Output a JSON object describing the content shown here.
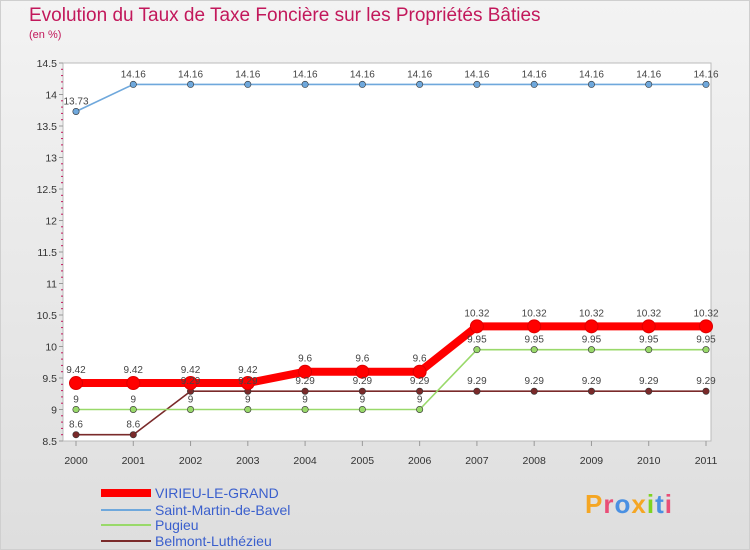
{
  "chart_data": {
    "type": "line",
    "title": "Evolution du Taux de Taxe Foncière sur les Propriétés Bâties",
    "ylabel": "(en %)",
    "xlabel": "",
    "categories": [
      "2000",
      "2001",
      "2002",
      "2003",
      "2004",
      "2005",
      "2006",
      "2007",
      "2008",
      "2009",
      "2010",
      "2011"
    ],
    "ylim": [
      8.5,
      14.5
    ],
    "yticks": [
      "8.5",
      "9",
      "9.5",
      "10",
      "10.5",
      "11",
      "11.5",
      "12",
      "12.5",
      "13",
      "13.5",
      "14",
      "14.5"
    ],
    "series": [
      {
        "name": "VIRIEU-LE-GRAND",
        "color": "#ff0000",
        "values": [
          9.42,
          9.42,
          9.42,
          9.42,
          9.6,
          9.6,
          9.6,
          10.32,
          10.32,
          10.32,
          10.32,
          10.32
        ],
        "labels": [
          "9.42",
          "9.42",
          "9.42",
          "9.42",
          "9.6",
          "9.6",
          "9.6",
          "10.32",
          "10.32",
          "10.32",
          "10.32",
          "10.32"
        ]
      },
      {
        "name": "Saint-Martin-de-Bavel",
        "color": "#6fa8dc",
        "values": [
          13.73,
          14.16,
          14.16,
          14.16,
          14.16,
          14.16,
          14.16,
          14.16,
          14.16,
          14.16,
          14.16,
          14.16
        ],
        "labels": [
          "13.73",
          "14.16",
          "14.16",
          "14.16",
          "14.16",
          "14.16",
          "14.16",
          "14.16",
          "14.16",
          "14.16",
          "14.16",
          "14.16"
        ]
      },
      {
        "name": "Pugieu",
        "color": "#99d96a",
        "values": [
          9,
          9,
          9,
          9,
          9,
          9,
          9,
          9.95,
          9.95,
          9.95,
          9.95,
          9.95
        ],
        "labels": [
          "9",
          "9",
          "9",
          "9",
          "9",
          "9",
          "9",
          "9.95",
          "9.95",
          "9.95",
          "9.95",
          "9.95"
        ]
      },
      {
        "name": "Belmont-Luthézieu",
        "color": "#7a2a2a",
        "values": [
          8.6,
          8.6,
          9.29,
          9.29,
          9.29,
          9.29,
          9.29,
          9.29,
          9.29,
          9.29,
          9.29,
          9.29
        ],
        "labels": [
          "8.6",
          "8.6",
          "9.29",
          "9.29",
          "9.29",
          "9.29",
          "9.29",
          "9.29",
          "9.29",
          "9.29",
          "9.29",
          "9.29"
        ]
      }
    ]
  },
  "logo": {
    "text": "Proxiti"
  }
}
